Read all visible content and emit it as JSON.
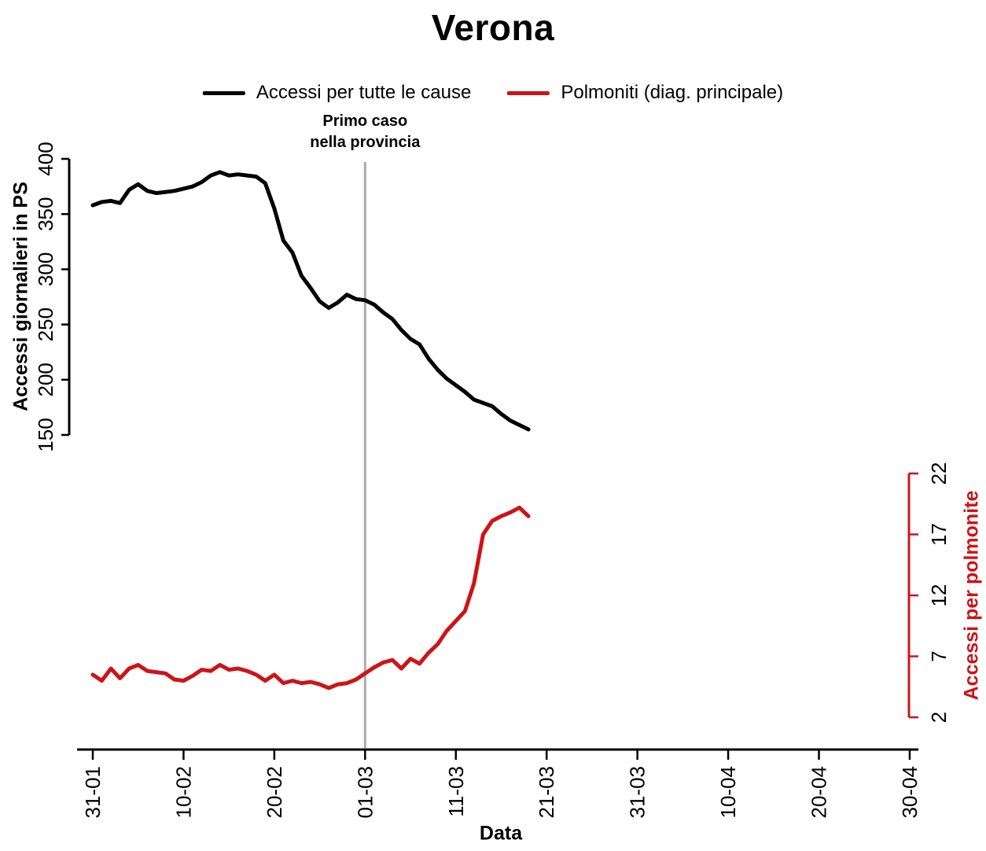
{
  "title": "Verona",
  "colors": {
    "all_causes": "#000000",
    "pneumonia": "#CC1418",
    "vline": "#ABABAB",
    "axis": "#000000"
  },
  "annotation": {
    "line1": "Primo caso",
    "line2": "nella provincia",
    "at_date": "01-03"
  },
  "chart_data": {
    "type": "line",
    "title": "Verona",
    "xlabel": "Data",
    "grid": false,
    "legend_position": "top",
    "x_tick_labels": [
      "31-01",
      "10-02",
      "20-02",
      "01-03",
      "11-03",
      "21-03",
      "31-03",
      "10-04",
      "20-04",
      "30-04"
    ],
    "x_dates": [
      "31-01",
      "01-02",
      "02-02",
      "03-02",
      "04-02",
      "05-02",
      "06-02",
      "07-02",
      "08-02",
      "09-02",
      "10-02",
      "11-02",
      "12-02",
      "13-02",
      "14-02",
      "15-02",
      "16-02",
      "17-02",
      "18-02",
      "19-02",
      "20-02",
      "21-02",
      "22-02",
      "23-02",
      "24-02",
      "25-02",
      "26-02",
      "27-02",
      "28-02",
      "29-02",
      "01-03",
      "02-03",
      "03-03",
      "04-03",
      "05-03",
      "06-03",
      "07-03",
      "08-03",
      "09-03",
      "10-03",
      "11-03",
      "12-03",
      "13-03",
      "14-03",
      "15-03",
      "16-03",
      "17-03",
      "18-03",
      "19-03"
    ],
    "left_axis": {
      "label": "Accessi giornalieri in PS",
      "ticks": [
        150,
        200,
        250,
        300,
        350,
        400
      ],
      "range": [
        150,
        400
      ],
      "color": "#000000"
    },
    "right_axis": {
      "label": "Accessi per polmonite",
      "ticks": [
        2,
        7,
        12,
        17,
        22
      ],
      "range": [
        2,
        22
      ],
      "color": "#CC1418"
    },
    "vline": {
      "date": "01-03",
      "label": "Primo caso nella provincia",
      "color": "#ABABAB"
    },
    "series": [
      {
        "name": "Accessi per tutte le cause",
        "axis": "left",
        "color": "#000000",
        "values": [
          358,
          361,
          362,
          360,
          372,
          377,
          371,
          369,
          370,
          371,
          373,
          375,
          379,
          385,
          388,
          385,
          386,
          385,
          384,
          378,
          355,
          326,
          315,
          294,
          283,
          271,
          265,
          270,
          277,
          273,
          272,
          268,
          261,
          255,
          245,
          237,
          232,
          219,
          209,
          201,
          195,
          189,
          182,
          179,
          176,
          169,
          163,
          159,
          155
        ]
      },
      {
        "name": "Polmoniti (diag. principale)",
        "axis": "right",
        "color": "#CC1418",
        "values": [
          5.5,
          5.0,
          6.0,
          5.2,
          6.0,
          6.3,
          5.8,
          5.7,
          5.6,
          5.1,
          5.0,
          5.4,
          5.9,
          5.8,
          6.3,
          5.9,
          6.0,
          5.8,
          5.5,
          5.0,
          5.5,
          4.8,
          5.0,
          4.8,
          4.9,
          4.7,
          4.4,
          4.7,
          4.8,
          5.1,
          5.6,
          6.1,
          6.5,
          6.7,
          6.0,
          6.8,
          6.4,
          7.3,
          8.0,
          9.1,
          9.9,
          10.7,
          13.0,
          17.0,
          18.1,
          18.5,
          18.8,
          19.2,
          18.5
        ]
      }
    ]
  }
}
